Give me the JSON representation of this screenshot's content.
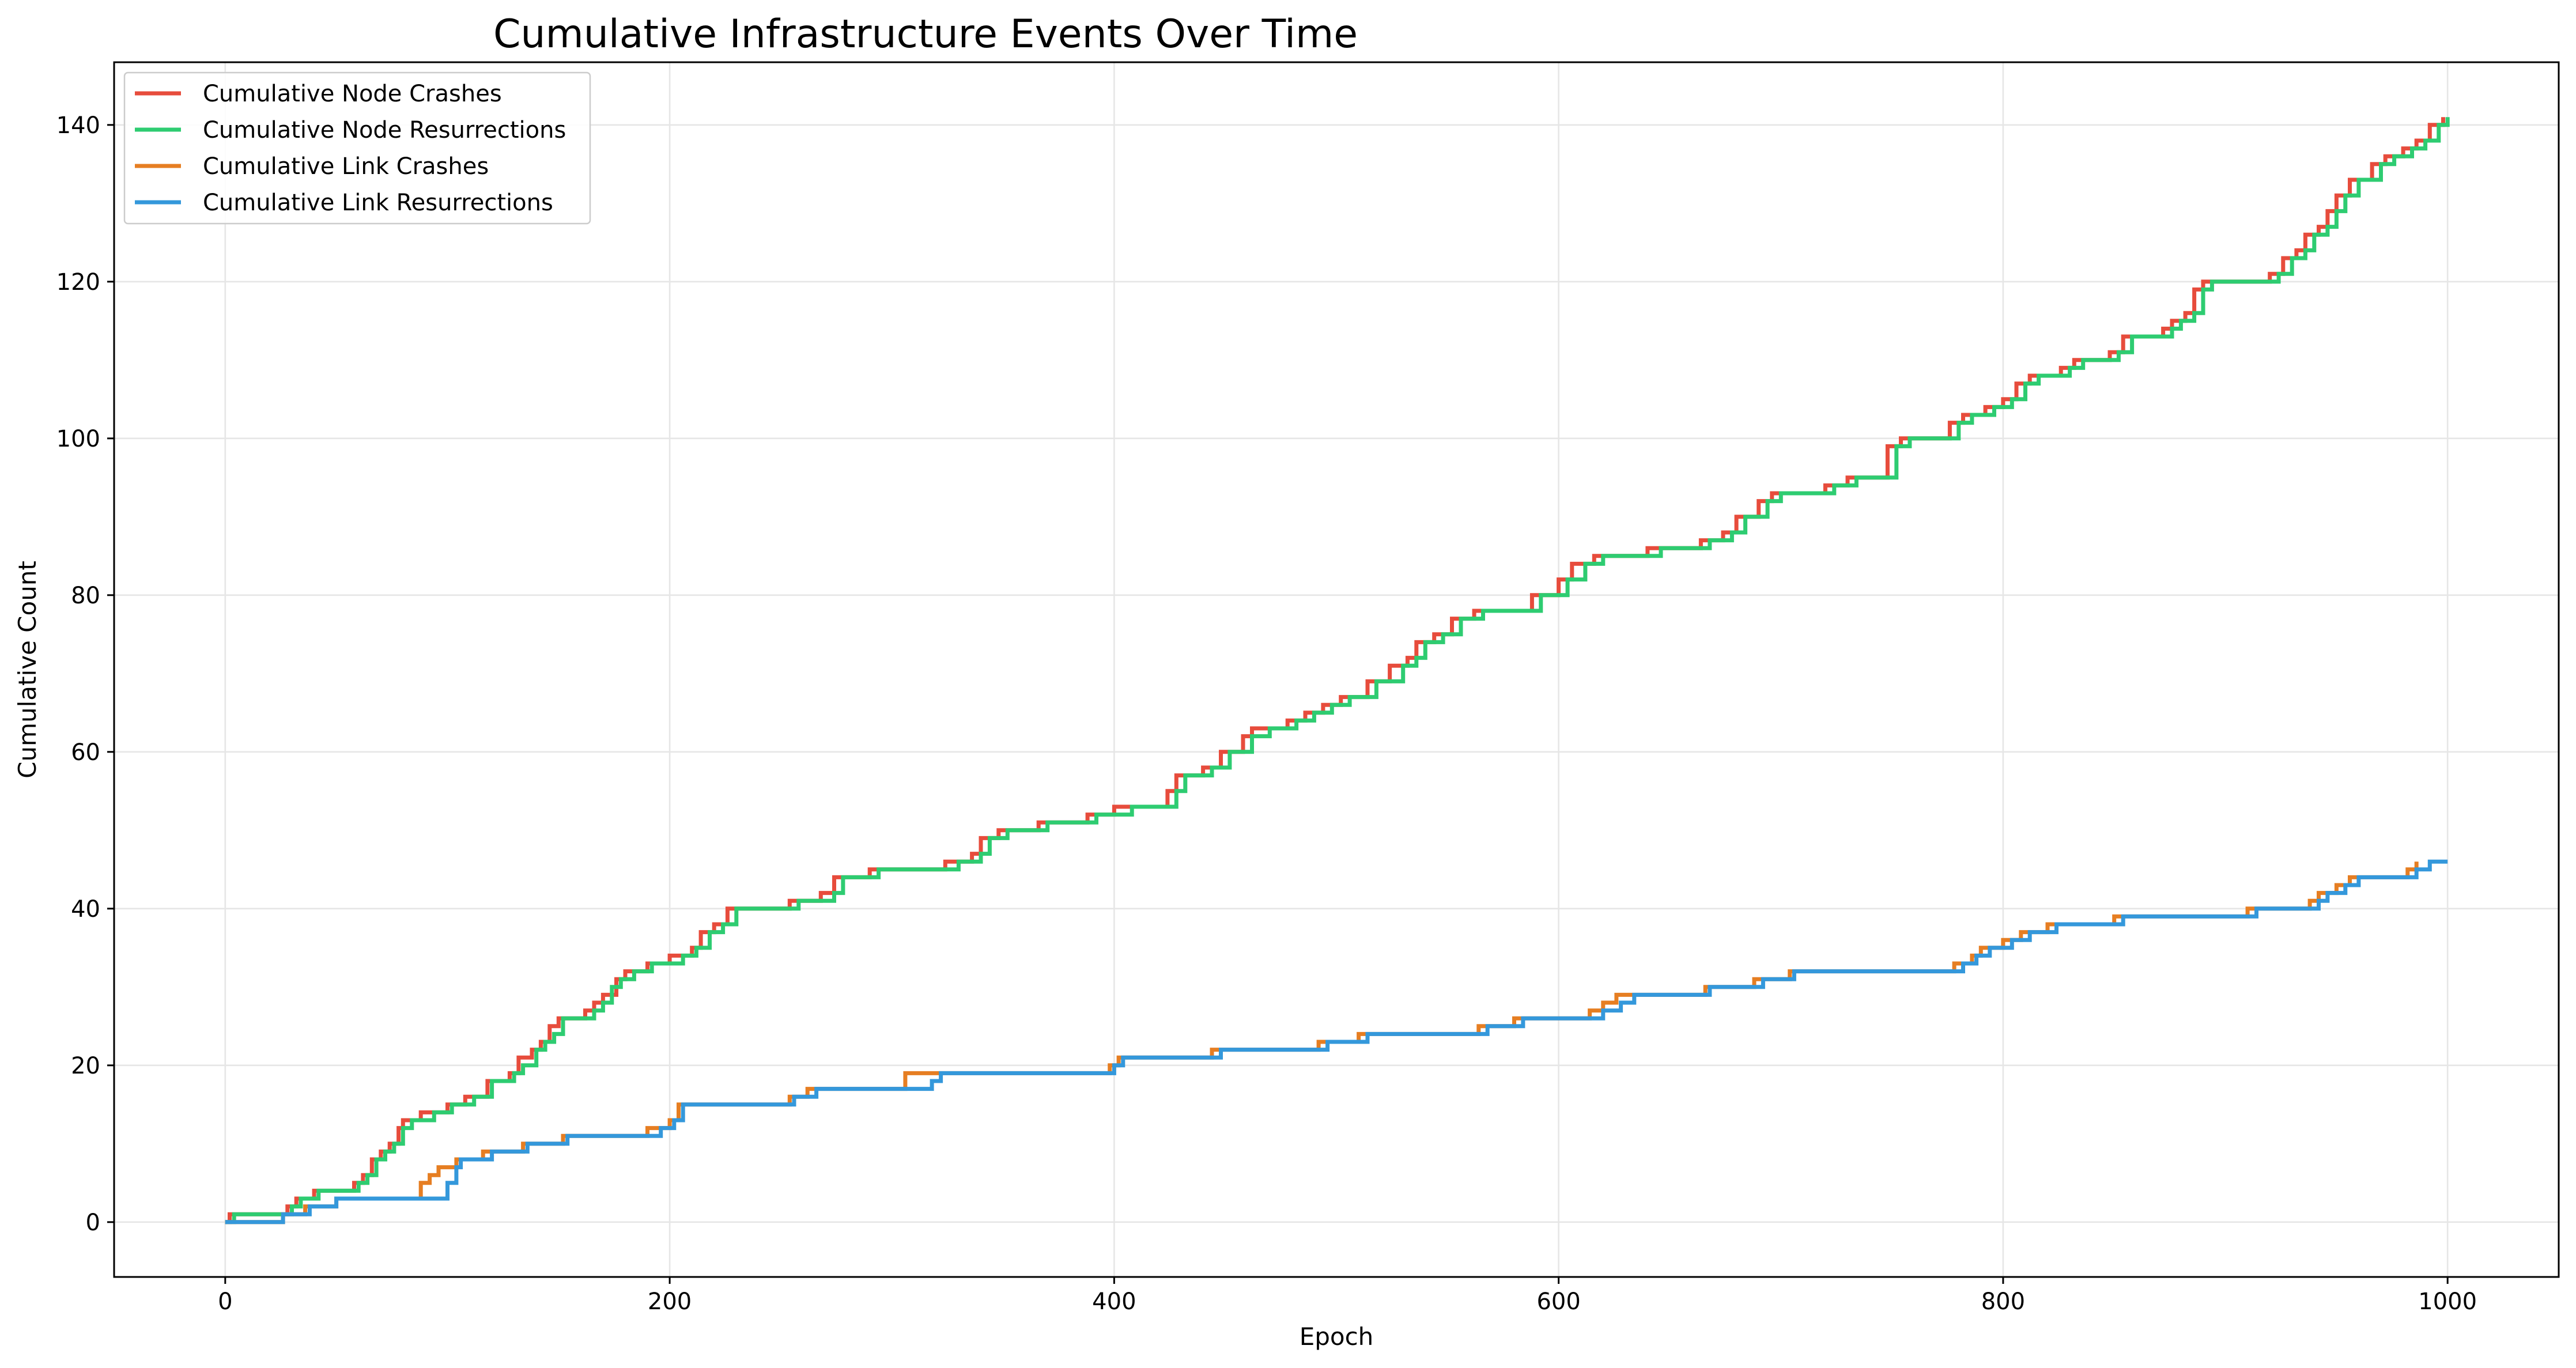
{
  "chart_data": {
    "type": "line",
    "title": "Cumulative Infrastructure Events Over Time",
    "xlabel": "Epoch",
    "ylabel": "Cumulative Count",
    "xlim": [
      -50,
      1050
    ],
    "ylim": [
      -7,
      148
    ],
    "xticks": [
      0,
      200,
      400,
      600,
      800,
      1000
    ],
    "yticks": [
      0,
      20,
      40,
      60,
      80,
      100,
      120,
      140
    ],
    "grid": true,
    "legend_position": "upper-left",
    "series": [
      {
        "name": "Cumulative Node Crashes",
        "color": "#e74c3c",
        "line": "step",
        "points": [
          [
            0,
            0
          ],
          [
            2,
            1
          ],
          [
            28,
            2
          ],
          [
            32,
            3
          ],
          [
            40,
            4
          ],
          [
            58,
            5
          ],
          [
            62,
            6
          ],
          [
            66,
            8
          ],
          [
            70,
            9
          ],
          [
            74,
            10
          ],
          [
            78,
            12
          ],
          [
            80,
            13
          ],
          [
            88,
            14
          ],
          [
            100,
            15
          ],
          [
            108,
            16
          ],
          [
            118,
            18
          ],
          [
            128,
            19
          ],
          [
            132,
            21
          ],
          [
            138,
            22
          ],
          [
            142,
            23
          ],
          [
            146,
            25
          ],
          [
            150,
            26
          ],
          [
            162,
            27
          ],
          [
            166,
            28
          ],
          [
            170,
            29
          ],
          [
            176,
            31
          ],
          [
            180,
            32
          ],
          [
            190,
            33
          ],
          [
            200,
            34
          ],
          [
            210,
            35
          ],
          [
            214,
            37
          ],
          [
            220,
            38
          ],
          [
            226,
            40
          ],
          [
            254,
            41
          ],
          [
            268,
            42
          ],
          [
            274,
            44
          ],
          [
            290,
            45
          ],
          [
            324,
            46
          ],
          [
            336,
            47
          ],
          [
            340,
            49
          ],
          [
            348,
            50
          ],
          [
            366,
            51
          ],
          [
            388,
            52
          ],
          [
            400,
            53
          ],
          [
            424,
            55
          ],
          [
            428,
            57
          ],
          [
            440,
            58
          ],
          [
            448,
            60
          ],
          [
            458,
            62
          ],
          [
            462,
            63
          ],
          [
            478,
            64
          ],
          [
            486,
            65
          ],
          [
            494,
            66
          ],
          [
            502,
            67
          ],
          [
            514,
            69
          ],
          [
            524,
            71
          ],
          [
            532,
            72
          ],
          [
            536,
            74
          ],
          [
            544,
            75
          ],
          [
            552,
            77
          ],
          [
            562,
            78
          ],
          [
            588,
            80
          ],
          [
            600,
            82
          ],
          [
            606,
            84
          ],
          [
            616,
            85
          ],
          [
            640,
            86
          ],
          [
            664,
            87
          ],
          [
            674,
            88
          ],
          [
            680,
            90
          ],
          [
            690,
            92
          ],
          [
            696,
            93
          ],
          [
            720,
            94
          ],
          [
            730,
            95
          ],
          [
            748,
            99
          ],
          [
            754,
            100
          ],
          [
            776,
            102
          ],
          [
            782,
            103
          ],
          [
            792,
            104
          ],
          [
            800,
            105
          ],
          [
            806,
            107
          ],
          [
            812,
            108
          ],
          [
            826,
            109
          ],
          [
            832,
            110
          ],
          [
            848,
            111
          ],
          [
            854,
            113
          ],
          [
            872,
            114
          ],
          [
            876,
            115
          ],
          [
            882,
            116
          ],
          [
            886,
            119
          ],
          [
            890,
            120
          ],
          [
            920,
            121
          ],
          [
            926,
            123
          ],
          [
            932,
            124
          ],
          [
            936,
            126
          ],
          [
            942,
            127
          ],
          [
            946,
            129
          ],
          [
            950,
            131
          ],
          [
            956,
            133
          ],
          [
            966,
            135
          ],
          [
            972,
            136
          ],
          [
            980,
            137
          ],
          [
            986,
            138
          ],
          [
            992,
            140
          ],
          [
            998,
            141
          ]
        ]
      },
      {
        "name": "Cumulative Node Resurrections",
        "color": "#2ecc71",
        "line": "step",
        "points": [
          [
            0,
            0
          ],
          [
            4,
            1
          ],
          [
            30,
            2
          ],
          [
            34,
            3
          ],
          [
            42,
            4
          ],
          [
            60,
            5
          ],
          [
            64,
            6
          ],
          [
            68,
            8
          ],
          [
            72,
            9
          ],
          [
            76,
            10
          ],
          [
            80,
            12
          ],
          [
            84,
            13
          ],
          [
            94,
            14
          ],
          [
            102,
            15
          ],
          [
            112,
            16
          ],
          [
            120,
            18
          ],
          [
            130,
            19
          ],
          [
            134,
            20
          ],
          [
            140,
            22
          ],
          [
            144,
            23
          ],
          [
            148,
            24
          ],
          [
            152,
            26
          ],
          [
            166,
            27
          ],
          [
            170,
            28
          ],
          [
            174,
            30
          ],
          [
            178,
            31
          ],
          [
            184,
            32
          ],
          [
            192,
            33
          ],
          [
            206,
            34
          ],
          [
            212,
            35
          ],
          [
            218,
            37
          ],
          [
            224,
            38
          ],
          [
            230,
            40
          ],
          [
            258,
            41
          ],
          [
            274,
            42
          ],
          [
            278,
            44
          ],
          [
            294,
            45
          ],
          [
            330,
            46
          ],
          [
            340,
            47
          ],
          [
            344,
            49
          ],
          [
            352,
            50
          ],
          [
            370,
            51
          ],
          [
            392,
            52
          ],
          [
            408,
            53
          ],
          [
            428,
            55
          ],
          [
            432,
            57
          ],
          [
            444,
            58
          ],
          [
            452,
            60
          ],
          [
            462,
            62
          ],
          [
            470,
            63
          ],
          [
            482,
            64
          ],
          [
            490,
            65
          ],
          [
            498,
            66
          ],
          [
            506,
            67
          ],
          [
            518,
            69
          ],
          [
            530,
            71
          ],
          [
            536,
            72
          ],
          [
            540,
            74
          ],
          [
            548,
            75
          ],
          [
            556,
            77
          ],
          [
            566,
            78
          ],
          [
            592,
            80
          ],
          [
            604,
            82
          ],
          [
            612,
            84
          ],
          [
            620,
            85
          ],
          [
            646,
            86
          ],
          [
            668,
            87
          ],
          [
            678,
            88
          ],
          [
            684,
            90
          ],
          [
            694,
            92
          ],
          [
            700,
            93
          ],
          [
            724,
            94
          ],
          [
            734,
            95
          ],
          [
            752,
            99
          ],
          [
            758,
            100
          ],
          [
            780,
            102
          ],
          [
            786,
            103
          ],
          [
            796,
            104
          ],
          [
            804,
            105
          ],
          [
            810,
            107
          ],
          [
            816,
            108
          ],
          [
            830,
            109
          ],
          [
            836,
            110
          ],
          [
            852,
            111
          ],
          [
            858,
            113
          ],
          [
            876,
            114
          ],
          [
            880,
            115
          ],
          [
            886,
            116
          ],
          [
            890,
            119
          ],
          [
            894,
            120
          ],
          [
            924,
            121
          ],
          [
            930,
            123
          ],
          [
            936,
            124
          ],
          [
            940,
            126
          ],
          [
            946,
            127
          ],
          [
            950,
            129
          ],
          [
            954,
            131
          ],
          [
            960,
            133
          ],
          [
            970,
            135
          ],
          [
            976,
            136
          ],
          [
            984,
            137
          ],
          [
            990,
            138
          ],
          [
            996,
            140
          ],
          [
            1000,
            141
          ]
        ]
      },
      {
        "name": "Cumulative Link Crashes",
        "color": "#e67e22",
        "line": "step",
        "points": [
          [
            0,
            0
          ],
          [
            26,
            1
          ],
          [
            36,
            2
          ],
          [
            50,
            3
          ],
          [
            88,
            5
          ],
          [
            92,
            6
          ],
          [
            96,
            7
          ],
          [
            104,
            8
          ],
          [
            116,
            9
          ],
          [
            134,
            10
          ],
          [
            152,
            11
          ],
          [
            190,
            12
          ],
          [
            200,
            13
          ],
          [
            204,
            15
          ],
          [
            254,
            16
          ],
          [
            262,
            17
          ],
          [
            306,
            19
          ],
          [
            322,
            19
          ],
          [
            398,
            20
          ],
          [
            402,
            21
          ],
          [
            444,
            22
          ],
          [
            492,
            23
          ],
          [
            510,
            24
          ],
          [
            564,
            25
          ],
          [
            580,
            26
          ],
          [
            614,
            27
          ],
          [
            620,
            28
          ],
          [
            626,
            29
          ],
          [
            666,
            30
          ],
          [
            688,
            31
          ],
          [
            704,
            32
          ],
          [
            778,
            33
          ],
          [
            786,
            34
          ],
          [
            790,
            35
          ],
          [
            800,
            36
          ],
          [
            808,
            37
          ],
          [
            820,
            38
          ],
          [
            850,
            39
          ],
          [
            910,
            40
          ],
          [
            938,
            41
          ],
          [
            942,
            42
          ],
          [
            950,
            43
          ],
          [
            956,
            44
          ],
          [
            982,
            45
          ],
          [
            986,
            46
          ]
        ]
      },
      {
        "name": "Cumulative Link Resurrections",
        "color": "#3498db",
        "line": "step",
        "points": [
          [
            0,
            0
          ],
          [
            26,
            1
          ],
          [
            38,
            2
          ],
          [
            50,
            3
          ],
          [
            100,
            5
          ],
          [
            104,
            7
          ],
          [
            106,
            8
          ],
          [
            120,
            9
          ],
          [
            136,
            10
          ],
          [
            154,
            11
          ],
          [
            196,
            12
          ],
          [
            202,
            13
          ],
          [
            206,
            15
          ],
          [
            256,
            16
          ],
          [
            266,
            17
          ],
          [
            318,
            18
          ],
          [
            322,
            19
          ],
          [
            400,
            20
          ],
          [
            404,
            21
          ],
          [
            448,
            22
          ],
          [
            496,
            23
          ],
          [
            514,
            24
          ],
          [
            568,
            25
          ],
          [
            584,
            26
          ],
          [
            620,
            27
          ],
          [
            628,
            28
          ],
          [
            634,
            29
          ],
          [
            668,
            30
          ],
          [
            692,
            31
          ],
          [
            706,
            32
          ],
          [
            782,
            33
          ],
          [
            788,
            34
          ],
          [
            794,
            35
          ],
          [
            804,
            36
          ],
          [
            812,
            37
          ],
          [
            824,
            38
          ],
          [
            854,
            39
          ],
          [
            914,
            40
          ],
          [
            942,
            41
          ],
          [
            946,
            42
          ],
          [
            954,
            43
          ],
          [
            960,
            44
          ],
          [
            986,
            45
          ],
          [
            992,
            46
          ],
          [
            1000,
            46
          ]
        ]
      }
    ]
  }
}
